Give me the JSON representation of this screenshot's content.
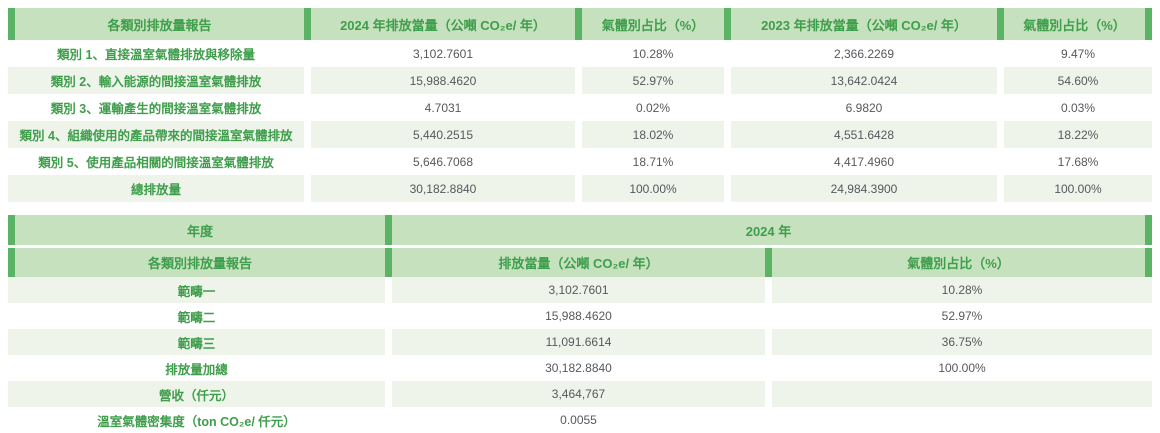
{
  "colors": {
    "header_bg": "#c5e1bd",
    "accent_green": "#5bb366",
    "green_text": "#3f9e4c",
    "row_alt_bg": "#eef4ea",
    "value_text": "#56585c"
  },
  "table1": {
    "headers": [
      "各類別排放量報告",
      "2024 年排放當量（公噸 CO₂e/ 年）",
      "氣體別占比（%）",
      "2023 年排放當量（公噸 CO₂e/ 年）",
      "氣體別占比（%）"
    ],
    "rows": [
      {
        "label": "類別 1、直接溫室氣體排放與移除量",
        "y2024_value": "3,102.7601",
        "y2024_pct": "10.28%",
        "y2023_value": "2,366.2269",
        "y2023_pct": "9.47%"
      },
      {
        "label": "類別 2、輸入能源的間接溫室氣體排放",
        "y2024_value": "15,988.4620",
        "y2024_pct": "52.97%",
        "y2023_value": "13,642.0424",
        "y2023_pct": "54.60%"
      },
      {
        "label": "類別 3、運輸產生的間接溫室氣體排放",
        "y2024_value": "4.7031",
        "y2024_pct": "0.02%",
        "y2023_value": "6.9820",
        "y2023_pct": "0.03%"
      },
      {
        "label": "類別 4、組織使用的產品帶來的間接溫室氣體排放",
        "y2024_value": "5,440.2515",
        "y2024_pct": "18.02%",
        "y2023_value": "4,551.6428",
        "y2023_pct": "18.22%"
      },
      {
        "label": "類別 5、使用產品相關的間接溫室氣體排放",
        "y2024_value": "5,646.7068",
        "y2024_pct": "18.71%",
        "y2023_value": "4,417.4960",
        "y2023_pct": "17.68%"
      },
      {
        "label": "總排放量",
        "y2024_value": "30,182.8840",
        "y2024_pct": "100.00%",
        "y2023_value": "24,984.3900",
        "y2023_pct": "100.00%"
      }
    ]
  },
  "table2": {
    "year_header": {
      "label": "年度",
      "value": "2024 年"
    },
    "headers": [
      "各類別排放量報告",
      "排放當量（公噸 CO₂e/ 年）",
      "氣體別占比（%）"
    ],
    "rows": [
      {
        "label": "範疇一",
        "value": "3,102.7601",
        "pct": "10.28%"
      },
      {
        "label": "範疇二",
        "value": "15,988.4620",
        "pct": "52.97%"
      },
      {
        "label": "範疇三",
        "value": "11,091.6614",
        "pct": "36.75%"
      },
      {
        "label": "排放量加總",
        "value": "30,182.8840",
        "pct": "100.00%"
      },
      {
        "label": "營收（仟元）",
        "value": "3,464,767",
        "pct": ""
      },
      {
        "label": "溫室氣體密集度（ton CO₂e/ 仟元）",
        "value": "0.0055",
        "pct": ""
      }
    ]
  }
}
